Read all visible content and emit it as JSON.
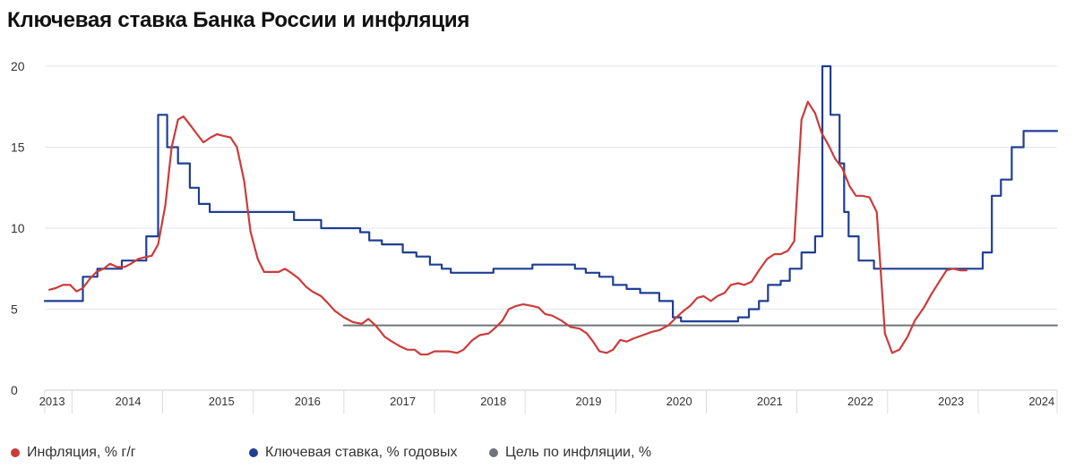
{
  "title": "Ключевая ставка Банка России и инфляция",
  "colors": {
    "inflation": "#cc3b3b",
    "key_rate": "#1f3f93",
    "target": "#707379",
    "grid": "#e3e6ec"
  },
  "legend": [
    {
      "label": "Инфляция, % г/г",
      "color": "#cc3b3b"
    },
    {
      "label": "Ключевая ставка, % годовых",
      "color": "#1f3f93"
    },
    {
      "label": "Цель по инфляции, %",
      "color": "#707379"
    }
  ],
  "chart_data": {
    "type": "line",
    "ylim": [
      0,
      20
    ],
    "y_ticks": [
      0,
      5,
      10,
      15,
      20
    ],
    "xlim": [
      2013.0,
      2024.17
    ],
    "year_labels": [
      {
        "label": "2013",
        "x": 2013.08
      },
      {
        "label": "2014",
        "x": 2013.92
      },
      {
        "label": "2015",
        "x": 2014.95
      },
      {
        "label": "2016",
        "x": 2015.9
      },
      {
        "label": "2017",
        "x": 2016.95
      },
      {
        "label": "2018",
        "x": 2017.95
      },
      {
        "label": "2019",
        "x": 2019.0
      },
      {
        "label": "2020",
        "x": 2020.0
      },
      {
        "label": "2021",
        "x": 2021.0
      },
      {
        "label": "2022",
        "x": 2022.0
      },
      {
        "label": "2023",
        "x": 2023.0
      },
      {
        "label": "2024",
        "x": 2024.0
      }
    ],
    "x_dividers": [
      2013.3,
      2014.3,
      2015.3,
      2016.3,
      2017.3,
      2018.3,
      2019.3,
      2020.3,
      2021.3,
      2022.3,
      2023.3
    ],
    "grid": true,
    "legend_position": "bottom",
    "series": [
      {
        "name": "Инфляция, % г/г",
        "step": false,
        "points": [
          [
            2013.05,
            6.2
          ],
          [
            2013.12,
            6.3
          ],
          [
            2013.2,
            6.5
          ],
          [
            2013.28,
            6.5
          ],
          [
            2013.35,
            6.1
          ],
          [
            2013.42,
            6.3
          ],
          [
            2013.5,
            6.9
          ],
          [
            2013.57,
            7.3
          ],
          [
            2013.65,
            7.5
          ],
          [
            2013.72,
            7.8
          ],
          [
            2013.8,
            7.6
          ],
          [
            2013.88,
            7.6
          ],
          [
            2013.95,
            7.8
          ],
          [
            2014.03,
            8.1
          ],
          [
            2014.1,
            8.2
          ],
          [
            2014.18,
            8.3
          ],
          [
            2014.25,
            9.0
          ],
          [
            2014.33,
            11.4
          ],
          [
            2014.4,
            15.0
          ],
          [
            2014.47,
            16.7
          ],
          [
            2014.53,
            16.9
          ],
          [
            2014.6,
            16.4
          ],
          [
            2014.68,
            15.8
          ],
          [
            2014.75,
            15.3
          ],
          [
            2014.83,
            15.6
          ],
          [
            2014.9,
            15.8
          ],
          [
            2014.97,
            15.7
          ],
          [
            2015.05,
            15.6
          ],
          [
            2015.12,
            15.0
          ],
          [
            2015.2,
            12.9
          ],
          [
            2015.27,
            9.8
          ],
          [
            2015.35,
            8.1
          ],
          [
            2015.42,
            7.3
          ],
          [
            2015.5,
            7.3
          ],
          [
            2015.58,
            7.3
          ],
          [
            2015.65,
            7.5
          ],
          [
            2015.73,
            7.2
          ],
          [
            2015.8,
            6.9
          ],
          [
            2015.88,
            6.4
          ],
          [
            2015.95,
            6.1
          ],
          [
            2016.05,
            5.8
          ],
          [
            2016.12,
            5.4
          ],
          [
            2016.2,
            4.9
          ],
          [
            2016.3,
            4.5
          ],
          [
            2016.4,
            4.2
          ],
          [
            2016.5,
            4.1
          ],
          [
            2016.57,
            4.4
          ],
          [
            2016.65,
            4.0
          ],
          [
            2016.75,
            3.3
          ],
          [
            2016.83,
            3.0
          ],
          [
            2016.92,
            2.7
          ],
          [
            2017.0,
            2.5
          ],
          [
            2017.08,
            2.5
          ],
          [
            2017.15,
            2.2
          ],
          [
            2017.22,
            2.2
          ],
          [
            2017.3,
            2.4
          ],
          [
            2017.45,
            2.4
          ],
          [
            2017.55,
            2.3
          ],
          [
            2017.62,
            2.5
          ],
          [
            2017.72,
            3.1
          ],
          [
            2017.8,
            3.4
          ],
          [
            2017.9,
            3.5
          ],
          [
            2017.98,
            3.9
          ],
          [
            2018.05,
            4.3
          ],
          [
            2018.12,
            5.0
          ],
          [
            2018.2,
            5.2
          ],
          [
            2018.28,
            5.3
          ],
          [
            2018.38,
            5.2
          ],
          [
            2018.45,
            5.1
          ],
          [
            2018.52,
            4.7
          ],
          [
            2018.6,
            4.6
          ],
          [
            2018.7,
            4.3
          ],
          [
            2018.8,
            3.9
          ],
          [
            2018.9,
            3.8
          ],
          [
            2018.98,
            3.5
          ],
          [
            2019.05,
            3.0
          ],
          [
            2019.12,
            2.4
          ],
          [
            2019.2,
            2.3
          ],
          [
            2019.27,
            2.5
          ],
          [
            2019.35,
            3.1
          ],
          [
            2019.42,
            3.0
          ],
          [
            2019.5,
            3.2
          ],
          [
            2019.6,
            3.4
          ],
          [
            2019.7,
            3.6
          ],
          [
            2019.78,
            3.7
          ],
          [
            2019.88,
            4.0
          ],
          [
            2019.97,
            4.5
          ],
          [
            2020.05,
            4.9
          ],
          [
            2020.12,
            5.2
          ],
          [
            2020.2,
            5.7
          ],
          [
            2020.27,
            5.8
          ],
          [
            2020.35,
            5.5
          ],
          [
            2020.42,
            5.8
          ],
          [
            2020.5,
            6.0
          ],
          [
            2020.57,
            6.5
          ],
          [
            2020.65,
            6.6
          ],
          [
            2020.72,
            6.5
          ],
          [
            2020.8,
            6.7
          ],
          [
            2020.88,
            7.4
          ],
          [
            2020.97,
            8.1
          ],
          [
            2021.05,
            8.4
          ],
          [
            2021.12,
            8.4
          ],
          [
            2021.2,
            8.6
          ],
          [
            2021.27,
            9.2
          ],
          [
            2021.35,
            16.7
          ],
          [
            2021.42,
            17.8
          ],
          [
            2021.5,
            17.1
          ],
          [
            2021.57,
            15.9
          ],
          [
            2021.65,
            15.1
          ],
          [
            2021.72,
            14.3
          ],
          [
            2021.8,
            13.7
          ],
          [
            2021.88,
            12.6
          ],
          [
            2021.95,
            12.0
          ],
          [
            2022.02,
            12.0
          ],
          [
            2022.1,
            11.9
          ],
          [
            2022.18,
            11.0
          ],
          [
            2022.27,
            3.5
          ],
          [
            2022.35,
            2.3
          ],
          [
            2022.43,
            2.5
          ],
          [
            2022.52,
            3.3
          ],
          [
            2022.6,
            4.3
          ],
          [
            2022.7,
            5.1
          ],
          [
            2022.78,
            5.9
          ],
          [
            2022.87,
            6.7
          ],
          [
            2022.95,
            7.4
          ],
          [
            2023.02,
            7.5
          ],
          [
            2023.1,
            7.4
          ],
          [
            2023.17,
            7.4
          ]
        ]
      },
      {
        "name": "Ключевая ставка, % годовых",
        "step": true,
        "points": [
          [
            2013.0,
            5.5
          ],
          [
            2013.42,
            7.0
          ],
          [
            2013.58,
            7.5
          ],
          [
            2013.85,
            8.0
          ],
          [
            2014.12,
            9.5
          ],
          [
            2014.25,
            17.0
          ],
          [
            2014.35,
            15.0
          ],
          [
            2014.47,
            14.0
          ],
          [
            2014.6,
            12.5
          ],
          [
            2014.7,
            11.5
          ],
          [
            2014.82,
            11.0
          ],
          [
            2015.75,
            10.5
          ],
          [
            2016.05,
            10.0
          ],
          [
            2016.48,
            9.75
          ],
          [
            2016.58,
            9.25
          ],
          [
            2016.72,
            9.0
          ],
          [
            2016.95,
            8.5
          ],
          [
            2017.1,
            8.25
          ],
          [
            2017.25,
            7.75
          ],
          [
            2017.38,
            7.5
          ],
          [
            2017.48,
            7.25
          ],
          [
            2017.95,
            7.5
          ],
          [
            2018.38,
            7.75
          ],
          [
            2018.85,
            7.5
          ],
          [
            2018.97,
            7.25
          ],
          [
            2019.12,
            7.0
          ],
          [
            2019.27,
            6.5
          ],
          [
            2019.42,
            6.25
          ],
          [
            2019.57,
            6.0
          ],
          [
            2019.78,
            5.5
          ],
          [
            2019.93,
            4.5
          ],
          [
            2020.02,
            4.25
          ],
          [
            2020.65,
            4.5
          ],
          [
            2020.77,
            5.0
          ],
          [
            2020.88,
            5.5
          ],
          [
            2020.98,
            6.5
          ],
          [
            2021.12,
            6.75
          ],
          [
            2021.22,
            7.5
          ],
          [
            2021.35,
            8.5
          ],
          [
            2021.5,
            9.5
          ],
          [
            2021.58,
            20.0
          ],
          [
            2021.67,
            17.0
          ],
          [
            2021.77,
            14.0
          ],
          [
            2021.82,
            11.0
          ],
          [
            2021.87,
            9.5
          ],
          [
            2021.98,
            8.0
          ],
          [
            2022.15,
            7.5
          ],
          [
            2023.35,
            8.5
          ],
          [
            2023.45,
            12.0
          ],
          [
            2023.55,
            13.0
          ],
          [
            2023.67,
            15.0
          ],
          [
            2023.8,
            16.0
          ],
          [
            2024.17,
            16.0
          ]
        ]
      },
      {
        "name": "Цель по инфляции, %",
        "step": false,
        "points": [
          [
            2016.3,
            4.0
          ],
          [
            2024.17,
            4.0
          ]
        ]
      }
    ]
  }
}
